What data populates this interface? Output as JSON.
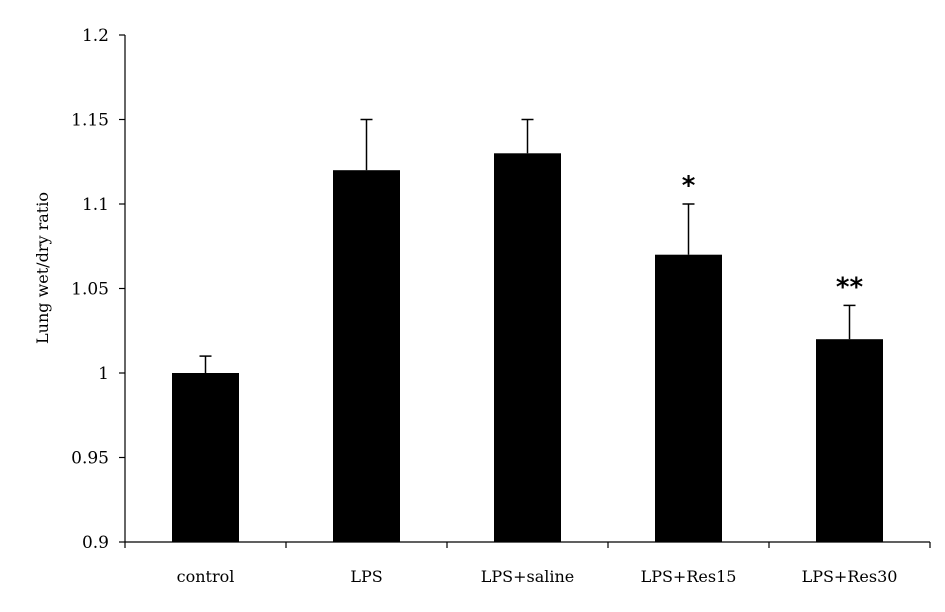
{
  "chart_data": {
    "type": "bar",
    "title": "",
    "xlabel": "",
    "ylabel": "Lung wet/dry ratio",
    "ylim": [
      0.9,
      1.2
    ],
    "yticks": [
      0.9,
      0.95,
      1,
      1.05,
      1.1,
      1.15,
      1.2
    ],
    "ytick_labels": [
      "0.9",
      "0.95",
      "1",
      "1.05",
      "1.1",
      "1.15",
      "1.2"
    ],
    "categories": [
      "control",
      "LPS",
      "LPS+saline",
      "LPS+Res15",
      "LPS+Res30"
    ],
    "values": [
      1.0,
      1.12,
      1.13,
      1.07,
      1.02
    ],
    "error_upper": [
      0.01,
      0.03,
      0.02,
      0.03,
      0.02
    ],
    "annotations": [
      "",
      "",
      "",
      "*",
      "**"
    ],
    "bar_color": "#000000",
    "grid": false,
    "legend": "none"
  }
}
